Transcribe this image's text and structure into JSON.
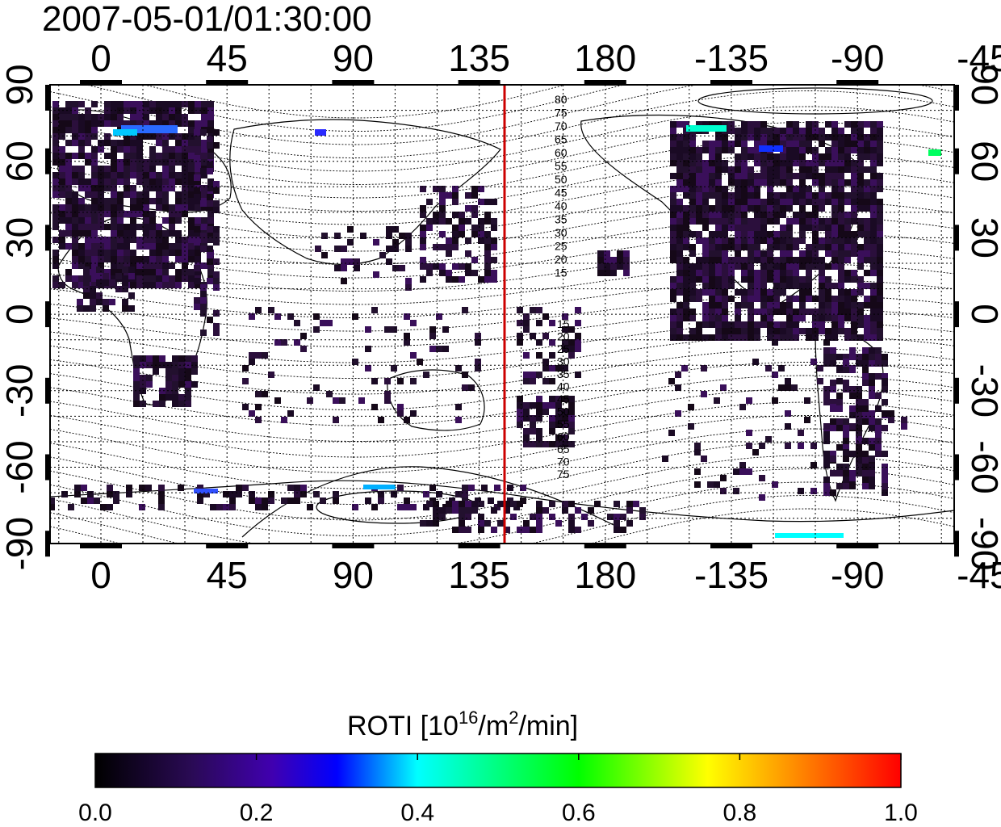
{
  "title": "2007-05-01/01:30:00",
  "map": {
    "lon_ticks": [
      "0",
      "45",
      "90",
      "135",
      "180",
      "-135",
      "-90",
      "-45"
    ],
    "lat_ticks": [
      "90",
      "60",
      "30",
      "0",
      "-30",
      "-60",
      "-90"
    ],
    "contour_labels_north": [
      "80",
      "75",
      "70",
      "65",
      "60",
      "55",
      "50",
      "45",
      "40",
      "35",
      "30",
      "25",
      "20",
      "15"
    ],
    "contour_labels_south": [
      "15",
      "20",
      "25",
      "30",
      "35",
      "40",
      "45",
      "50",
      "55",
      "60",
      "65",
      "70",
      "75"
    ],
    "terminator_line_color": "#cc0000",
    "terminator_longitude": 158,
    "gridlines": "dotted"
  },
  "colorbar": {
    "label_prefix": "ROTI  [10",
    "label_sup1": "16",
    "label_mid": "/m",
    "label_sup2": "2",
    "label_suffix": "/min]",
    "ticks": [
      "0.0",
      "0.2",
      "0.4",
      "0.6",
      "0.8",
      "1.0"
    ],
    "range": [
      0.0,
      1.0
    ],
    "colormap": [
      "#000000",
      "#3a0a6e",
      "#0000ff",
      "#00ffff",
      "#00ff00",
      "#ffff00",
      "#ff0000"
    ]
  }
}
